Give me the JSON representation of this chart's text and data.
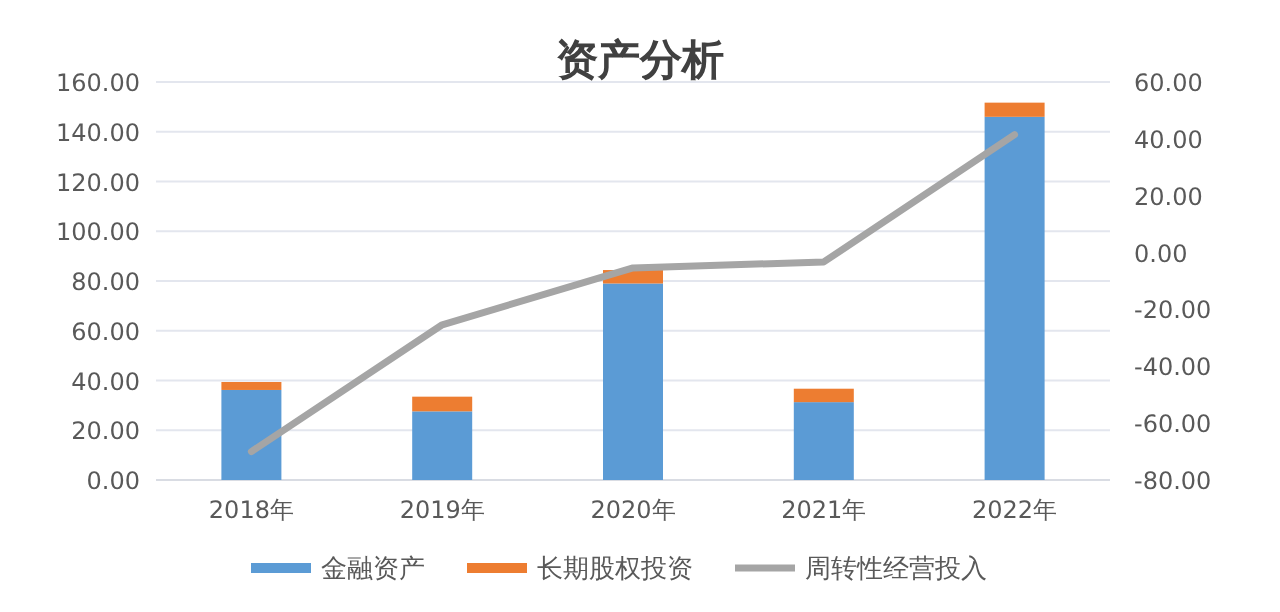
{
  "chart_data": {
    "type": "bar",
    "title": "资产分析",
    "stacked": true,
    "categories": [
      "2018年",
      "2019年",
      "2020年",
      "2021年",
      "2022年"
    ],
    "series": [
      {
        "name": "金融资产",
        "color": "#5b9bd5",
        "values": [
          36.2,
          27.6,
          79,
          31.3,
          146
        ]
      },
      {
        "name": "长期股权投资",
        "color": "#ed7d31",
        "values": [
          3.2,
          5.9,
          5.4,
          5.4,
          5.7
        ]
      },
      {
        "name": "周转性经营投入",
        "color": "#a5a5a5",
        "type": "line",
        "axis": "y2",
        "values": [
          -70,
          -25.4,
          -5.4,
          -3.3,
          41.5
        ]
      }
    ],
    "ylim": [
      0,
      160
    ],
    "yticks": [
      {
        "value": 0,
        "label": "0.00"
      },
      {
        "value": 20,
        "label": "20.00"
      },
      {
        "value": 40,
        "label": "40.00"
      },
      {
        "value": 60,
        "label": "60.00"
      },
      {
        "value": 80,
        "label": "80.00"
      },
      {
        "value": 100,
        "label": "100.00"
      },
      {
        "value": 120,
        "label": "120.00"
      },
      {
        "value": 140,
        "label": "140.00"
      },
      {
        "value": 160,
        "label": "160.00"
      }
    ],
    "y2lim": [
      -80,
      60
    ],
    "y2ticks": [
      {
        "value": -80,
        "label": "-80.00"
      },
      {
        "value": -60,
        "label": "-60.00"
      },
      {
        "value": -40,
        "label": "-40.00"
      },
      {
        "value": -20,
        "label": "-20.00"
      },
      {
        "value": 0,
        "label": "0.00"
      },
      {
        "value": 20,
        "label": "20.00"
      },
      {
        "value": 40,
        "label": "40.00"
      },
      {
        "value": 60,
        "label": "60.00"
      }
    ],
    "grid": "y",
    "legend": "bottom"
  }
}
